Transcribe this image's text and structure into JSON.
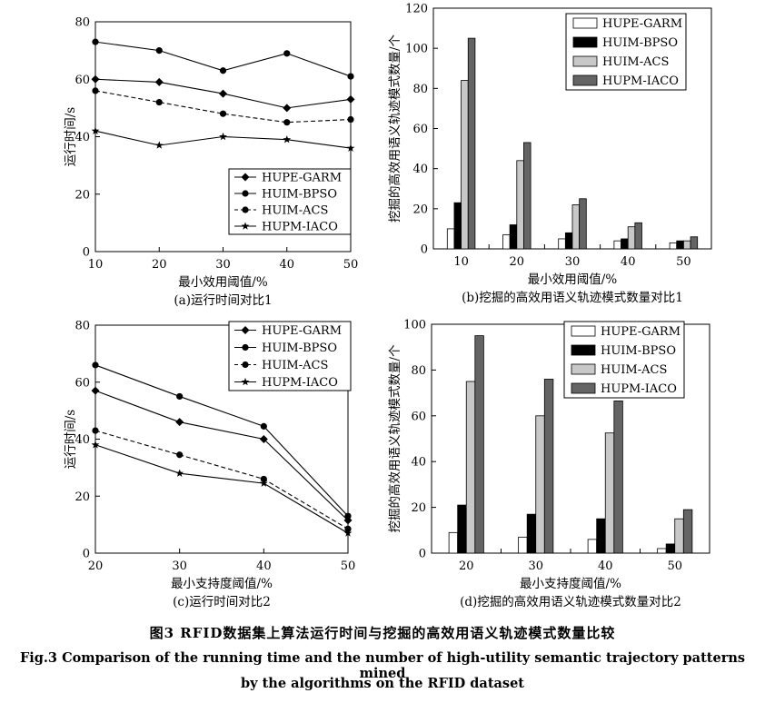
{
  "caption": {
    "cn": "图3 RFID数据集上算法运行时间与挖掘的高效用语义轨迹模式数量比较",
    "en_line1": "Fig.3 Comparison of the running time and the number of high-utility semantic trajectory patterns mined",
    "en_line2": "by the algorithms on the RFID dataset"
  },
  "chart_data": [
    {
      "id": "a",
      "type": "line",
      "subtitle": "(a)运行时间对比1",
      "xlabel": "最小效用阈值/%",
      "ylabel": "运行时间/s",
      "x": [
        10,
        20,
        30,
        40,
        50
      ],
      "xlim": [
        10,
        50
      ],
      "ylim": [
        0,
        80
      ],
      "yticks": [
        0,
        20,
        40,
        60,
        80
      ],
      "legend_position": "bottom-right",
      "series": [
        {
          "name": "HUPE-GARM",
          "marker": "diamond",
          "dash": "solid",
          "values": [
            60,
            59,
            55,
            50,
            53
          ]
        },
        {
          "name": "HUIM-BPSO",
          "marker": "circle",
          "dash": "solid",
          "values": [
            73,
            70,
            63,
            69,
            61
          ]
        },
        {
          "name": "HUIM-ACS",
          "marker": "circle",
          "dash": "dashed",
          "values": [
            56,
            52,
            48,
            45,
            46
          ]
        },
        {
          "name": "HUPM-IACO",
          "marker": "star",
          "dash": "solid",
          "values": [
            42,
            37,
            40,
            39,
            36
          ]
        }
      ]
    },
    {
      "id": "b",
      "type": "bar",
      "subtitle": "(b)挖掘的高效用语义轨迹模式数量对比1",
      "xlabel": "最小效用阈值/%",
      "ylabel": "挖掘的高效用语义轨迹模式数量/个",
      "categories": [
        "10",
        "20",
        "30",
        "40",
        "50"
      ],
      "ylim": [
        0,
        120
      ],
      "yticks": [
        0,
        20,
        40,
        60,
        80,
        100,
        120
      ],
      "legend_position": "top-right",
      "series": [
        {
          "name": "HUPE-GARM",
          "color": "#ffffff",
          "values": [
            10,
            7,
            5,
            4,
            3
          ]
        },
        {
          "name": "HUIM-BPSO",
          "color": "#000000",
          "values": [
            23,
            12,
            8,
            5,
            4
          ]
        },
        {
          "name": "HUIM-ACS",
          "color": "#c8c8c8",
          "values": [
            84,
            44,
            22,
            11,
            4
          ]
        },
        {
          "name": "HUPM-IACO",
          "color": "#646464",
          "values": [
            105,
            53,
            25,
            13,
            6
          ]
        }
      ]
    },
    {
      "id": "c",
      "type": "line",
      "subtitle": "(c)运行时间对比2",
      "xlabel": "最小支持度阈值/%",
      "ylabel": "运行时间/s",
      "x": [
        20,
        30,
        40,
        50
      ],
      "xlim": [
        20,
        50
      ],
      "ylim": [
        0,
        80
      ],
      "yticks": [
        0,
        20,
        40,
        60,
        80
      ],
      "legend_position": "top-right",
      "series": [
        {
          "name": "HUPE-GARM",
          "marker": "diamond",
          "dash": "solid",
          "values": [
            57,
            46,
            40,
            11.5
          ]
        },
        {
          "name": "HUIM-BPSO",
          "marker": "circle",
          "dash": "solid",
          "values": [
            66,
            55,
            44.5,
            13
          ]
        },
        {
          "name": "HUIM-ACS",
          "marker": "circle",
          "dash": "dashed",
          "values": [
            43,
            34.5,
            26,
            8.5
          ]
        },
        {
          "name": "HUPM-IACO",
          "marker": "star",
          "dash": "solid",
          "values": [
            38,
            28,
            24.5,
            7
          ]
        }
      ]
    },
    {
      "id": "d",
      "type": "bar",
      "subtitle": "(d)挖掘的高效用语义轨迹模式数量对比2",
      "xlabel": "最小支持度阈值/%",
      "ylabel": "挖掘的高效用语义轨迹模式数量/个",
      "categories": [
        "20",
        "30",
        "40",
        "50"
      ],
      "ylim": [
        0,
        100
      ],
      "yticks": [
        0,
        20,
        40,
        60,
        80,
        100
      ],
      "legend_position": "top-right",
      "series": [
        {
          "name": "HUPE-GARM",
          "color": "#ffffff",
          "values": [
            9,
            7,
            6,
            2
          ]
        },
        {
          "name": "HUIM-BPSO",
          "color": "#000000",
          "values": [
            21,
            17,
            15,
            4
          ]
        },
        {
          "name": "HUIM-ACS",
          "color": "#c8c8c8",
          "values": [
            75,
            60,
            52.5,
            15
          ]
        },
        {
          "name": "HUPM-IACO",
          "color": "#646464",
          "values": [
            95,
            76,
            66.5,
            19
          ]
        }
      ]
    }
  ]
}
